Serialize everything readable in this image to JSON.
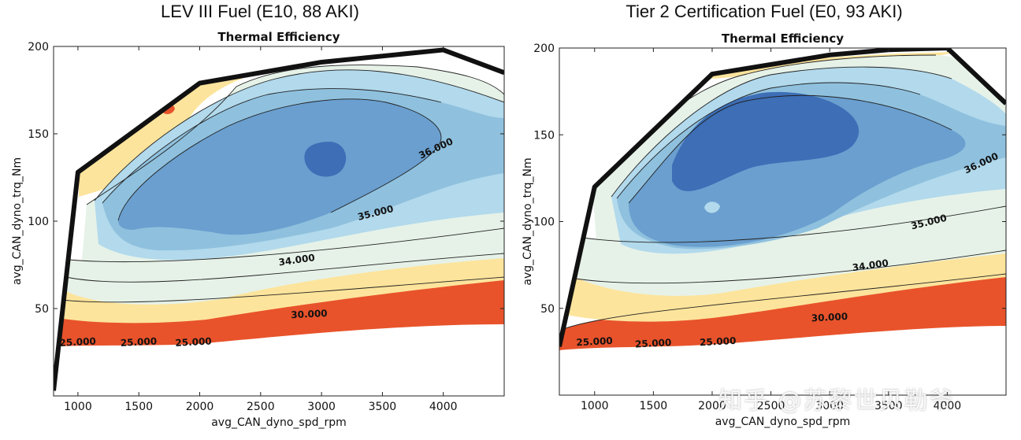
{
  "watermark": "知乎 @苏黎世贝勒爷",
  "colors": {
    "c1": "#e8532b",
    "c2": "#fde49c",
    "c3": "#e6f2e8",
    "c4": "#b2d9ec",
    "c5": "#8fc1de",
    "c6": "#6a9fcf",
    "c7": "#3d6eb6",
    "boundary": "#111111"
  },
  "chart_data": [
    {
      "type": "contour",
      "panel_title": "LEV III Fuel (E10, 88 AKI)",
      "title": "Thermal Efficiency",
      "xlabel": "avg_CAN_dyno_spd_rpm",
      "ylabel": "avg_CAN_dyno_trq_Nm",
      "xlim": [
        800,
        4500
      ],
      "ylim": [
        0,
        200
      ],
      "xticks": [
        1000,
        1500,
        2000,
        2500,
        3000,
        3500,
        4000
      ],
      "yticks": [
        50,
        100,
        150,
        200
      ],
      "boundary_line": {
        "rpm": [
          800,
          1000,
          2000,
          3000,
          4000,
          4500
        ],
        "torque": [
          3,
          128,
          179,
          191,
          198,
          185
        ]
      },
      "efficiency_levels": [
        25,
        30,
        34,
        35,
        36
      ],
      "contour_labels": [
        {
          "text": "25.000",
          "rpm": 1000,
          "torque": 29
        },
        {
          "text": "25.000",
          "rpm": 1500,
          "torque": 29
        },
        {
          "text": "25.000",
          "rpm": 1950,
          "torque": 29
        },
        {
          "text": "30.000",
          "rpm": 2900,
          "torque": 45
        },
        {
          "text": "34.000",
          "rpm": 2800,
          "torque": 76
        },
        {
          "text": "35.000",
          "rpm": 3450,
          "torque": 103
        },
        {
          "text": "36.000",
          "rpm": 3950,
          "torque": 140
        }
      ],
      "peak_efficiency_region": {
        "rpm": 3050,
        "torque": 133
      }
    },
    {
      "type": "contour",
      "panel_title": "Tier 2 Certification Fuel (E0, 93 AKI)",
      "title": "Thermal Efficiency",
      "xlabel": "avg_CAN_dyno_spd_rpm",
      "ylabel": "avg_CAN_dyno_trq_Nm",
      "xlim": [
        700,
        4500
      ],
      "ylim": [
        0,
        200
      ],
      "xticks": [
        1000,
        1500,
        2000,
        2500,
        3000,
        3500,
        4000
      ],
      "yticks": [
        50,
        100,
        150,
        200
      ],
      "boundary_line": {
        "rpm": [
          700,
          1000,
          2000,
          3000,
          3500,
          4000,
          4500
        ],
        "torque": [
          28,
          120,
          185,
          196,
          199,
          200,
          168
        ]
      },
      "efficiency_levels": [
        25,
        30,
        34,
        35,
        36
      ],
      "contour_labels": [
        {
          "text": "25.000",
          "rpm": 1000,
          "torque": 29
        },
        {
          "text": "25.000",
          "rpm": 1500,
          "torque": 28
        },
        {
          "text": "25.000",
          "rpm": 2050,
          "torque": 29
        },
        {
          "text": "30.000",
          "rpm": 3000,
          "torque": 43
        },
        {
          "text": "34.000",
          "rpm": 3350,
          "torque": 73
        },
        {
          "text": "35.000",
          "rpm": 3850,
          "torque": 98
        },
        {
          "text": "36.000",
          "rpm": 4300,
          "torque": 132
        }
      ],
      "peak_efficiency_region": {
        "rpm": 2850,
        "torque": 130
      }
    }
  ]
}
